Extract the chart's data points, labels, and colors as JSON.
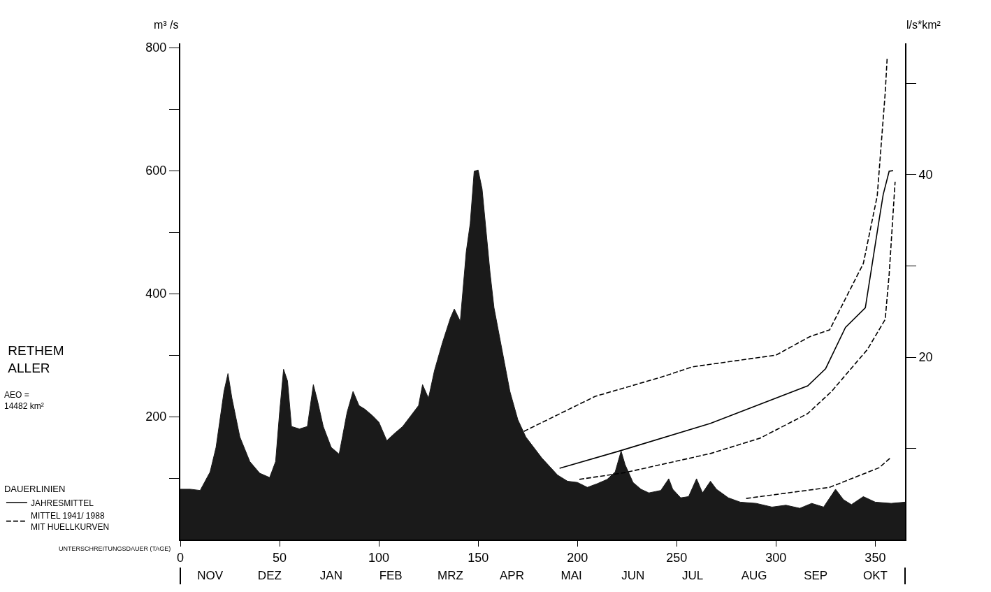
{
  "chart_data": {
    "type": "area",
    "title": "RETHEM\nALLER",
    "subtitle": "AEO =\n14482 km²",
    "xlabel": "UNTERSCHREITUNGSDAUER (TAGE)",
    "ylabel": "m³ /s",
    "y2label": "l/s*km²",
    "legend_title": "DAUERLINIEN",
    "legend": "left",
    "marker": "none",
    "grid": false,
    "series": [
      {
        "color": "#1a1a1a",
        "x": [
          0,
          5,
          10,
          15,
          18,
          22,
          24,
          26,
          30,
          35,
          40,
          45,
          48,
          50,
          52,
          54,
          56,
          60,
          64,
          67,
          69,
          72,
          76,
          80,
          84,
          87,
          90,
          93,
          97,
          100,
          104,
          108,
          112,
          116,
          120,
          122,
          125,
          128,
          132,
          136,
          138,
          141,
          144,
          146,
          148,
          150,
          152,
          154,
          156,
          158,
          162,
          166,
          170,
          174,
          178,
          182,
          186,
          190,
          195,
          200,
          205,
          210,
          215,
          219,
          222,
          224,
          228,
          232,
          236,
          242,
          246,
          248,
          252,
          256,
          260,
          263,
          267,
          270,
          276,
          282,
          290,
          298,
          305,
          312,
          318,
          324,
          330,
          334,
          338,
          344,
          350,
          358,
          365
        ],
        "values": [
          82,
          82,
          80,
          110,
          150,
          241,
          270,
          230,
          167,
          127,
          108,
          101,
          127,
          207,
          277,
          258,
          184,
          180,
          184,
          252,
          227,
          184,
          150,
          139,
          207,
          241,
          218,
          212,
          201,
          191,
          161,
          173,
          184,
          201,
          218,
          252,
          230,
          275,
          320,
          360,
          375,
          355,
          468,
          514,
          599,
          601,
          570,
          502,
          434,
          377,
          309,
          241,
          195,
          167,
          150,
          133,
          119,
          105,
          95,
          93,
          85,
          91,
          98,
          110,
          144,
          122,
          93,
          82,
          76,
          80,
          99,
          82,
          68,
          70,
          99,
          76,
          95,
          82,
          68,
          61,
          59,
          53,
          56,
          51,
          59,
          53,
          82,
          65,
          57,
          70,
          61,
          59,
          61
        ]
      },
      {
        "type": "line",
        "name": "JAHRESMITTEL",
        "color": "#000000",
        "line_style": "solid",
        "x": [
          191,
          221,
          267,
          316,
          325,
          335,
          345,
          352,
          354,
          357,
          359
        ],
        "values": [
          116,
          144,
          189,
          250,
          278,
          345,
          377,
          521,
          561,
          599,
          600
        ]
      },
      {
        "type": "line",
        "color": "#000000",
        "line_style": "dashed",
        "x": [
          173,
          209,
          242,
          258,
          300,
          317,
          327,
          344,
          351,
          355,
          356
        ],
        "values": [
          176,
          233,
          264,
          281,
          300,
          330,
          341,
          449,
          559,
          726,
          783
        ]
      },
      {
        "type": "line",
        "name": "MITTEL 1941/ 1988\nMIT HUELLKURVEN",
        "color": "#000000",
        "line_style": "dashed",
        "x": [
          201,
          224,
          267,
          292,
          316,
          328,
          346,
          355,
          357,
          360
        ],
        "values": [
          98,
          109,
          140,
          165,
          205,
          241,
          309,
          358,
          431,
          582
        ]
      },
      {
        "type": "line",
        "color": "#000000",
        "line_style": "dashed",
        "x": [
          285,
          327,
          352,
          358
        ],
        "values": [
          67,
          85,
          117,
          134
        ]
      }
    ],
    "xlim": [
      0,
      365
    ],
    "xticks": [
      0,
      50,
      100,
      150,
      200,
      250,
      300,
      350
    ],
    "x2lim": [
      "1987-11-01",
      "1988-10-31"
    ],
    "x2ticks": [
      {
        "value": "1987-11-01",
        "label": null
      },
      {
        "value": "1987-11-16",
        "label": "NOV"
      },
      {
        "value": "1987-12-16",
        "label": "DEZ"
      },
      {
        "value": "1988-01-16",
        "label": "JAN"
      },
      {
        "value": "1988-02-15",
        "label": "FEB"
      },
      {
        "value": "1988-03-16",
        "label": "MRZ"
      },
      {
        "value": "1988-04-16",
        "label": "APR"
      },
      {
        "value": "1988-05-16",
        "label": "MAI"
      },
      {
        "value": "1988-06-16",
        "label": "JUN"
      },
      {
        "value": "1988-07-16",
        "label": "JUL"
      },
      {
        "value": "1988-08-16",
        "label": "AUG"
      },
      {
        "value": "1988-09-16",
        "label": "SEP"
      },
      {
        "value": "1988-10-16",
        "label": "OKT"
      },
      {
        "value": "1988-10-31",
        "label": null
      }
    ],
    "ylim": [
      0,
      807
    ],
    "yticks": [
      {
        "value": 100,
        "label": null
      },
      200,
      {
        "value": 300,
        "label": null
      },
      400,
      {
        "value": 500,
        "label": null
      },
      600,
      {
        "value": 700,
        "label": null
      },
      800
    ],
    "y2lim": [
      0,
      54.4
    ],
    "y2ticks": [
      {
        "value": 10,
        "label": null
      },
      20,
      {
        "value": 30,
        "label": null
      },
      40,
      {
        "value": 50,
        "label": null
      }
    ]
  }
}
